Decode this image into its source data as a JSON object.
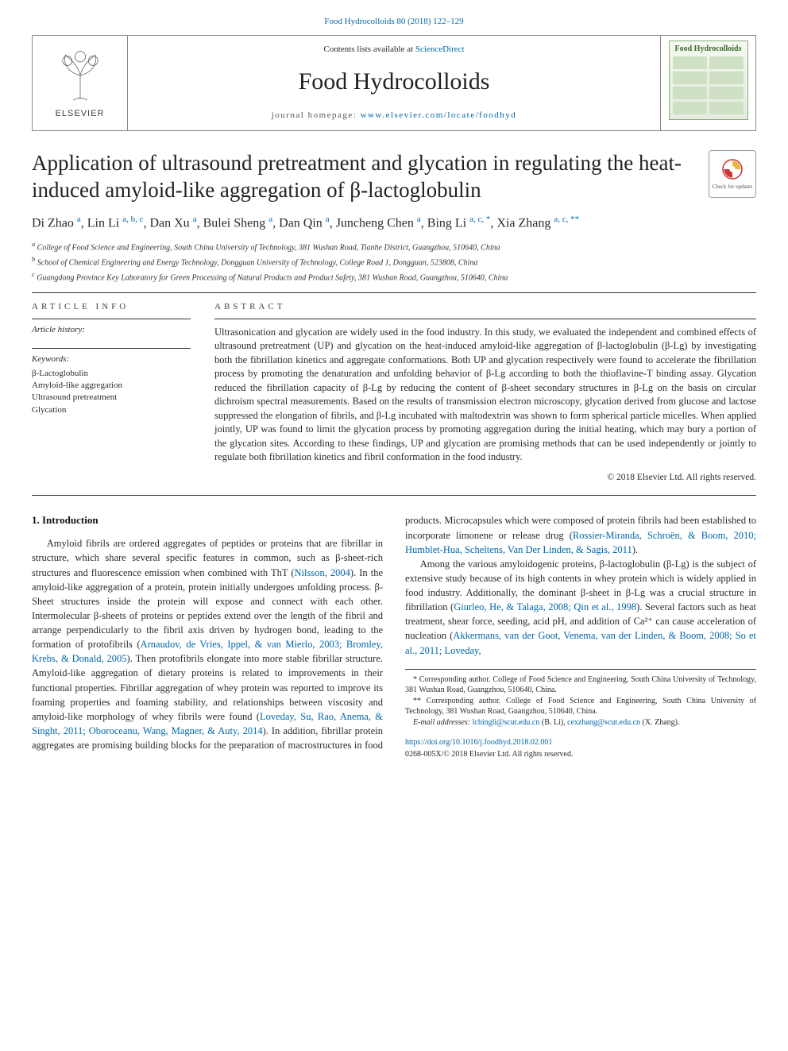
{
  "top_journal_ref": "Food Hydrocolloids 80 (2018) 122–129",
  "header": {
    "lists_prefix": "Contents lists available at ",
    "lists_link": "ScienceDirect",
    "journal_name": "Food Hydrocolloids",
    "homepage_prefix": "journal homepage: ",
    "homepage_link": "www.elsevier.com/locate/foodhyd",
    "publisher_name": "ELSEVIER",
    "cover_title": "Food Hydrocolloids"
  },
  "check_updates": "Check for updates",
  "title": "Application of ultrasound pretreatment and glycation in regulating the heat-induced amyloid-like aggregation of β-lactoglobulin",
  "authors_html": "Di Zhao <sup>a</sup>, Lin Li <sup>a, b, c</sup>, Dan Xu <sup>a</sup>, Bulei Sheng <sup>a</sup>, Dan Qin <sup>a</sup>, Juncheng Chen <sup>a</sup>, Bing Li <sup>a, c, *</sup>, Xia Zhang <sup>a, c, **</sup>",
  "affiliations": [
    "a College of Food Science and Engineering, South China University of Technology, 381 Wushan Road, Tianhe District, Guangzhou, 510640, China",
    "b School of Chemical Engineering and Energy Technology, Dongguan University of Technology, College Road 1, Dongguan, 523808, China",
    "c Guangdong Province Key Laboratory for Green Processing of Natural Products and Product Safety, 381 Wushan Road, Guangzhou, 510640, China"
  ],
  "article_info_head": "ARTICLE INFO",
  "abstract_head": "ABSTRACT",
  "history_label": "Article history:",
  "keywords_label": "Keywords:",
  "keywords": [
    "β-Lactoglobulin",
    "Amyloid-like aggregation",
    "Ultrasound pretreatment",
    "Glycation"
  ],
  "abstract": "Ultrasonication and glycation are widely used in the food industry. In this study, we evaluated the independent and combined effects of ultrasound pretreatment (UP) and glycation on the heat-induced amyloid-like aggregation of β-lactoglobulin (β-Lg) by investigating both the fibrillation kinetics and aggregate conformations. Both UP and glycation respectively were found to accelerate the fibrillation process by promoting the denaturation and unfolding behavior of β-Lg according to both the thioflavine-T binding assay. Glycation reduced the fibrillation capacity of β-Lg by reducing the content of β-sheet secondary structures in β-Lg on the basis on circular dichroism spectral measurements. Based on the results of transmission electron microscopy, glycation derived from glucose and lactose suppressed the elongation of fibrils, and β-Lg incubated with maltodextrin was shown to form spherical particle micelles. When applied jointly, UP was found to limit the glycation process by promoting aggregation during the initial heating, which may bury a portion of the glycation sites. According to these findings, UP and glycation are promising methods that can be used independently or jointly to regulate both fibrillation kinetics and fibril conformation in the food industry.",
  "copyright": "© 2018 Elsevier Ltd. All rights reserved.",
  "intro_heading": "1. Introduction",
  "intro_p1a": "Amyloid fibrils are ordered aggregates of peptides or proteins that are fibrillar in structure, which share several specific features in common, such as β-sheet-rich structures and fluorescence emission when combined with ThT (",
  "intro_p1_link1": "Nilsson, 2004",
  "intro_p1b": "). In the amyloid-like aggregation of a protein, protein initially undergoes unfolding process. β-Sheet structures inside the protein will expose and connect with each other. Intermolecular β-sheets of proteins or peptides extend over the length of the fibril and arrange perpendicularly to the fibril axis driven by hydrogen bond, leading to the formation of protofibrils (",
  "intro_p1_link2": "Arnaudov, de Vries, Ippel, & van Mierlo, 2003; Bromley, Krebs, & Donald, 2005",
  "intro_p1c": "). Then protofibrils elongate into more stable fibrillar structure. Amyloid-like aggregation of ",
  "intro_p2a": "dietary proteins is related to improvements in their functional properties. Fibrillar aggregation of whey protein was reported to improve its foaming properties and foaming stability, and relationships between viscosity and amyloid-like morphology of whey fibrils were found (",
  "intro_p2_link1": "Loveday, Su, Rao, Anema, & Singht, 2011; Oboroceanu, Wang, Magner, & Auty, 2014",
  "intro_p2b": "). In addition, fibrillar protein aggregates are promising building blocks for the preparation of macrostructures in food products. Microcapsules which were composed of protein fibrils had been established to incorporate limonene or release drug (",
  "intro_p2_link2": "Rossier-Miranda, Schroën, & Boom, 2010; Humblet-Hua, Scheltens, Van Der Linden, & Sagis, 2011",
  "intro_p2c": ").",
  "intro_p3a": "Among the various amyloidogenic proteins, β-lactoglobulin (β-Lg) is the subject of extensive study because of its high contents in whey protein which is widely applied in food industry. Additionally, the dominant β-sheet in β-Lg was a crucial structure in fibrillation (",
  "intro_p3_link1": "Giurleo, He, & Talaga, 2008; Qin et al., 1998",
  "intro_p3b": "). Several factors such as heat treatment, shear force, seeding, acid pH, and addition of Ca²⁺ can cause acceleration of nucleation (",
  "intro_p3_link2": "Akkermans, van der Goot, Venema, van der Linden, & Boom, 2008; So et al., 2011; Loveday,",
  "footnotes": {
    "f1": "* Corresponding author. College of Food Science and Engineering, South China University of Technology, 381 Wushan Road, Guangzhou, 510640, China.",
    "f2": "** Corresponding author. College of Food Science and Engineering, South China University of Technology, 381 Wushan Road, Guangzhou, 510640, China.",
    "emails_label": "E-mail addresses: ",
    "email1": "lcbingli@scut.edu.cn",
    "email1_who": " (B. Li), ",
    "email2": "cexzhang@scut.edu.cn",
    "email2_who": " (X. Zhang)."
  },
  "doi_link": "https://doi.org/10.1016/j.foodhyd.2018.02.001",
  "doi_line2": "0268-005X/© 2018 Elsevier Ltd. All rights reserved.",
  "colors": {
    "link": "#0066a8",
    "text": "#2a2a2a",
    "rule": "#333333",
    "cover_border": "#8aad7a",
    "cover_title": "#3a6a2a"
  }
}
